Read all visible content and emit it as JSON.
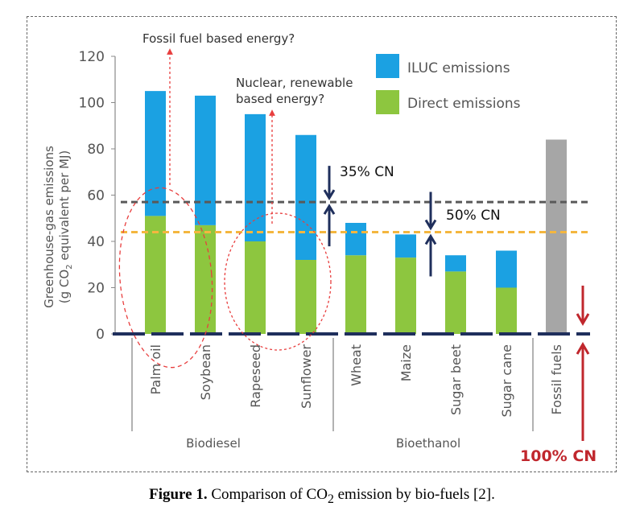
{
  "chart_data": {
    "type": "bar",
    "stacked": true,
    "ylabel_line1": "Greenhouse-gas emissions",
    "ylabel_line2_pre": "(g CO",
    "ylabel_line2_sub": "2",
    "ylabel_line2_post": " equivalent per MJ)",
    "ylim": [
      0,
      120
    ],
    "yticks": [
      0,
      20,
      40,
      60,
      80,
      100,
      120
    ],
    "categories": [
      "Palm oil",
      "Soybean",
      "Rapeseed",
      "Sunflower",
      "Wheat",
      "Maize",
      "Sugar beet",
      "Sugar cane",
      "Fossil fuels"
    ],
    "groups": [
      {
        "label": "Biodiesel",
        "count": 4
      },
      {
        "label": "Bioethanol",
        "count": 4
      }
    ],
    "series": [
      {
        "name": "Direct emissions",
        "color": "#8dc63f",
        "values": [
          51,
          47,
          40,
          32,
          34,
          33,
          27,
          20,
          0
        ]
      },
      {
        "name": "ILUC emissions",
        "color": "#1ba1e2",
        "values": [
          54,
          56,
          55,
          54,
          14,
          10,
          7,
          16,
          0
        ]
      }
    ],
    "fossil": {
      "value": 84,
      "color": "#a6a6a6"
    },
    "reference_lines": [
      {
        "value": 57,
        "color": "#595959",
        "style": "dashed",
        "label": "35% CN"
      },
      {
        "value": 44,
        "color": "#f4b63f",
        "style": "dashed",
        "label": "50% CN"
      }
    ],
    "annotations": {
      "fossil_energy": "Fossil fuel based energy?",
      "nuclear_line1": "Nuclear, renewable",
      "nuclear_line2": "based energy?",
      "cn100": "100% CN"
    },
    "legend_position": "top-right"
  },
  "caption": {
    "label": "Figure 1.",
    "text_pre": " Comparison of CO",
    "text_sub": "2",
    "text_post": " emission by bio-fuels [2]."
  }
}
